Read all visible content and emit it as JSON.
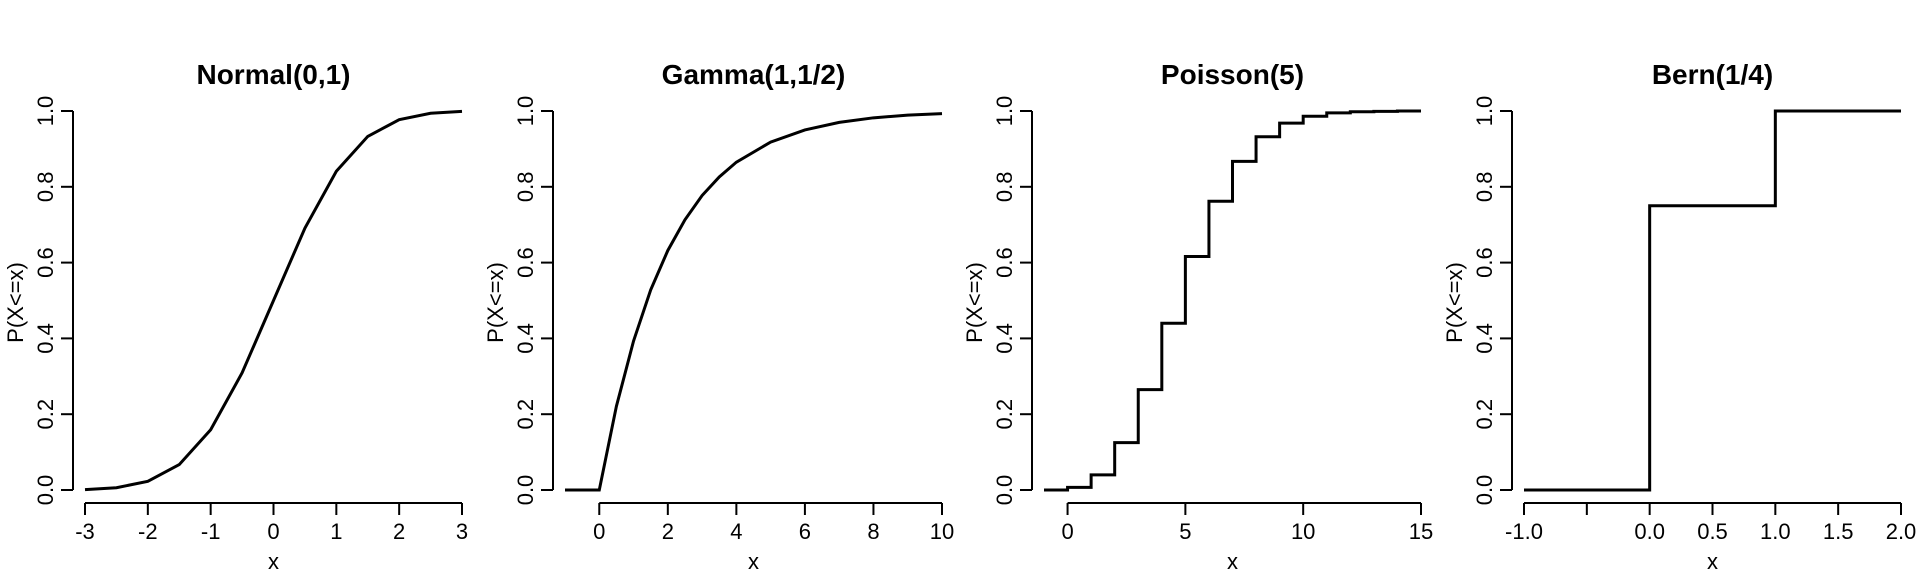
{
  "chart_data": [
    {
      "type": "line",
      "title": "Normal(0,1)",
      "xlabel": "x",
      "ylabel": "P(X<=x)",
      "xlim": [
        -3,
        3
      ],
      "ylim": [
        0,
        1
      ],
      "xticks": [
        -3,
        -2,
        -1,
        0,
        1,
        2,
        3
      ],
      "xtick_labels": [
        "-3",
        "-2",
        "-1",
        "0",
        "1",
        "2",
        "3"
      ],
      "yticks": [
        0,
        0.2,
        0.4,
        0.6,
        0.8,
        1.0
      ],
      "ytick_labels": [
        "0.0",
        "0.2",
        "0.4",
        "0.6",
        "0.8",
        "1.0"
      ],
      "series": [
        {
          "x": [
            -3,
            -2.5,
            -2,
            -1.5,
            -1,
            -0.5,
            0,
            0.5,
            1,
            1.5,
            2,
            2.5,
            3
          ],
          "y": [
            0.001,
            0.006,
            0.023,
            0.067,
            0.159,
            0.309,
            0.5,
            0.691,
            0.841,
            0.933,
            0.977,
            0.994,
            0.999
          ]
        }
      ]
    },
    {
      "type": "line",
      "title": "Gamma(1,1/2)",
      "xlabel": "x",
      "ylabel": "P(X<=x)",
      "xlim": [
        -1,
        10
      ],
      "ylim": [
        0,
        1
      ],
      "xticks": [
        0,
        2,
        4,
        6,
        8,
        10
      ],
      "xtick_labels": [
        "0",
        "2",
        "4",
        "6",
        "8",
        "10"
      ],
      "yticks": [
        0,
        0.2,
        0.4,
        0.6,
        0.8,
        1.0
      ],
      "ytick_labels": [
        "0.0",
        "0.2",
        "0.4",
        "0.6",
        "0.8",
        "1.0"
      ],
      "series": [
        {
          "x": [
            -1,
            0,
            0.5,
            1,
            1.5,
            2,
            2.5,
            3,
            3.5,
            4,
            5,
            6,
            7,
            8,
            9,
            10
          ],
          "y": [
            0,
            0,
            0.221,
            0.393,
            0.528,
            0.632,
            0.713,
            0.777,
            0.826,
            0.865,
            0.918,
            0.95,
            0.97,
            0.982,
            0.989,
            0.993
          ]
        }
      ]
    },
    {
      "type": "line",
      "title": "Poisson(5)",
      "xlabel": "x",
      "ylabel": "P(X<=x)",
      "step": true,
      "xlim": [
        -1,
        15
      ],
      "ylim": [
        0,
        1
      ],
      "xticks": [
        0,
        5,
        10,
        15
      ],
      "xtick_labels": [
        "0",
        "5",
        "10",
        "15"
      ],
      "yticks": [
        0,
        0.2,
        0.4,
        0.6,
        0.8,
        1.0
      ],
      "ytick_labels": [
        "0.0",
        "0.2",
        "0.4",
        "0.6",
        "0.8",
        "1.0"
      ],
      "series": [
        {
          "x": [
            -1,
            0,
            1,
            2,
            3,
            4,
            5,
            6,
            7,
            8,
            9,
            10,
            11,
            12,
            13,
            14,
            15
          ],
          "y": [
            0,
            0.007,
            0.04,
            0.125,
            0.265,
            0.44,
            0.616,
            0.762,
            0.867,
            0.932,
            0.968,
            0.986,
            0.995,
            0.998,
            0.999,
            1.0,
            1.0
          ]
        }
      ]
    },
    {
      "type": "line",
      "title": "Bern(1/4)",
      "xlabel": "x",
      "ylabel": "P(X<=x)",
      "step": true,
      "xlim": [
        -1,
        2
      ],
      "ylim": [
        0,
        1
      ],
      "xticks": [
        -1,
        -0.5,
        0,
        0.5,
        1,
        1.5,
        2
      ],
      "xtick_labels": [
        "-1.0",
        "",
        "0.0",
        "0.5",
        "1.0",
        "1.5",
        "2.0"
      ],
      "yticks": [
        0,
        0.2,
        0.4,
        0.6,
        0.8,
        1.0
      ],
      "ytick_labels": [
        "0.0",
        "0.2",
        "0.4",
        "0.6",
        "0.8",
        "1.0"
      ],
      "series": [
        {
          "x": [
            -1,
            0,
            1,
            2
          ],
          "y": [
            0,
            0.75,
            1.0,
            1.0
          ]
        }
      ]
    }
  ]
}
